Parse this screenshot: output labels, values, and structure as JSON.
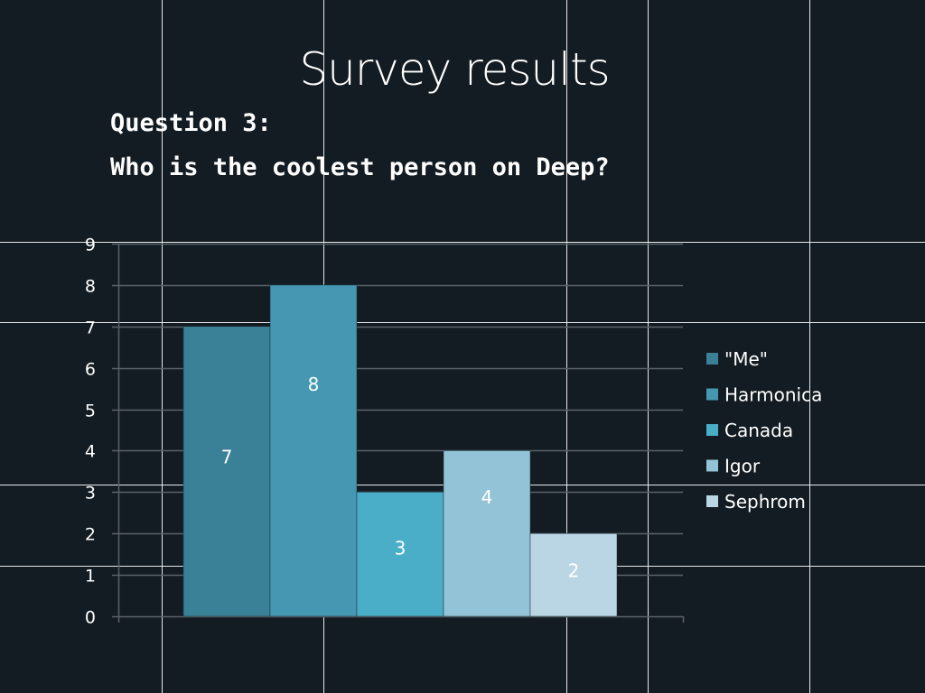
{
  "slide": {
    "title": "Survey results",
    "question_line_1": "Question 3:",
    "question_line_2": "Who is the coolest person on Deep?"
  },
  "colors": {
    "background": "#131c22",
    "gridline": "#5b6368",
    "slide_grid": "#ffffff",
    "text": "#ffffff"
  },
  "chart_data": {
    "type": "bar",
    "title": "",
    "xlabel": "",
    "ylabel": "",
    "ylim": [
      0,
      9
    ],
    "yticks": [
      0,
      1,
      2,
      3,
      4,
      5,
      6,
      7,
      8,
      9
    ],
    "grid": true,
    "legend_position": "right",
    "series": [
      {
        "name": "\"Me\"",
        "value": 7,
        "color": "#3a8096"
      },
      {
        "name": "Harmonica",
        "value": 8,
        "color": "#4597b2"
      },
      {
        "name": "Canada",
        "value": 3,
        "color": "#4aaec8"
      },
      {
        "name": "Igor",
        "value": 4,
        "color": "#93c3d6"
      },
      {
        "name": "Sephrom",
        "value": 2,
        "color": "#bad6e4"
      }
    ]
  }
}
